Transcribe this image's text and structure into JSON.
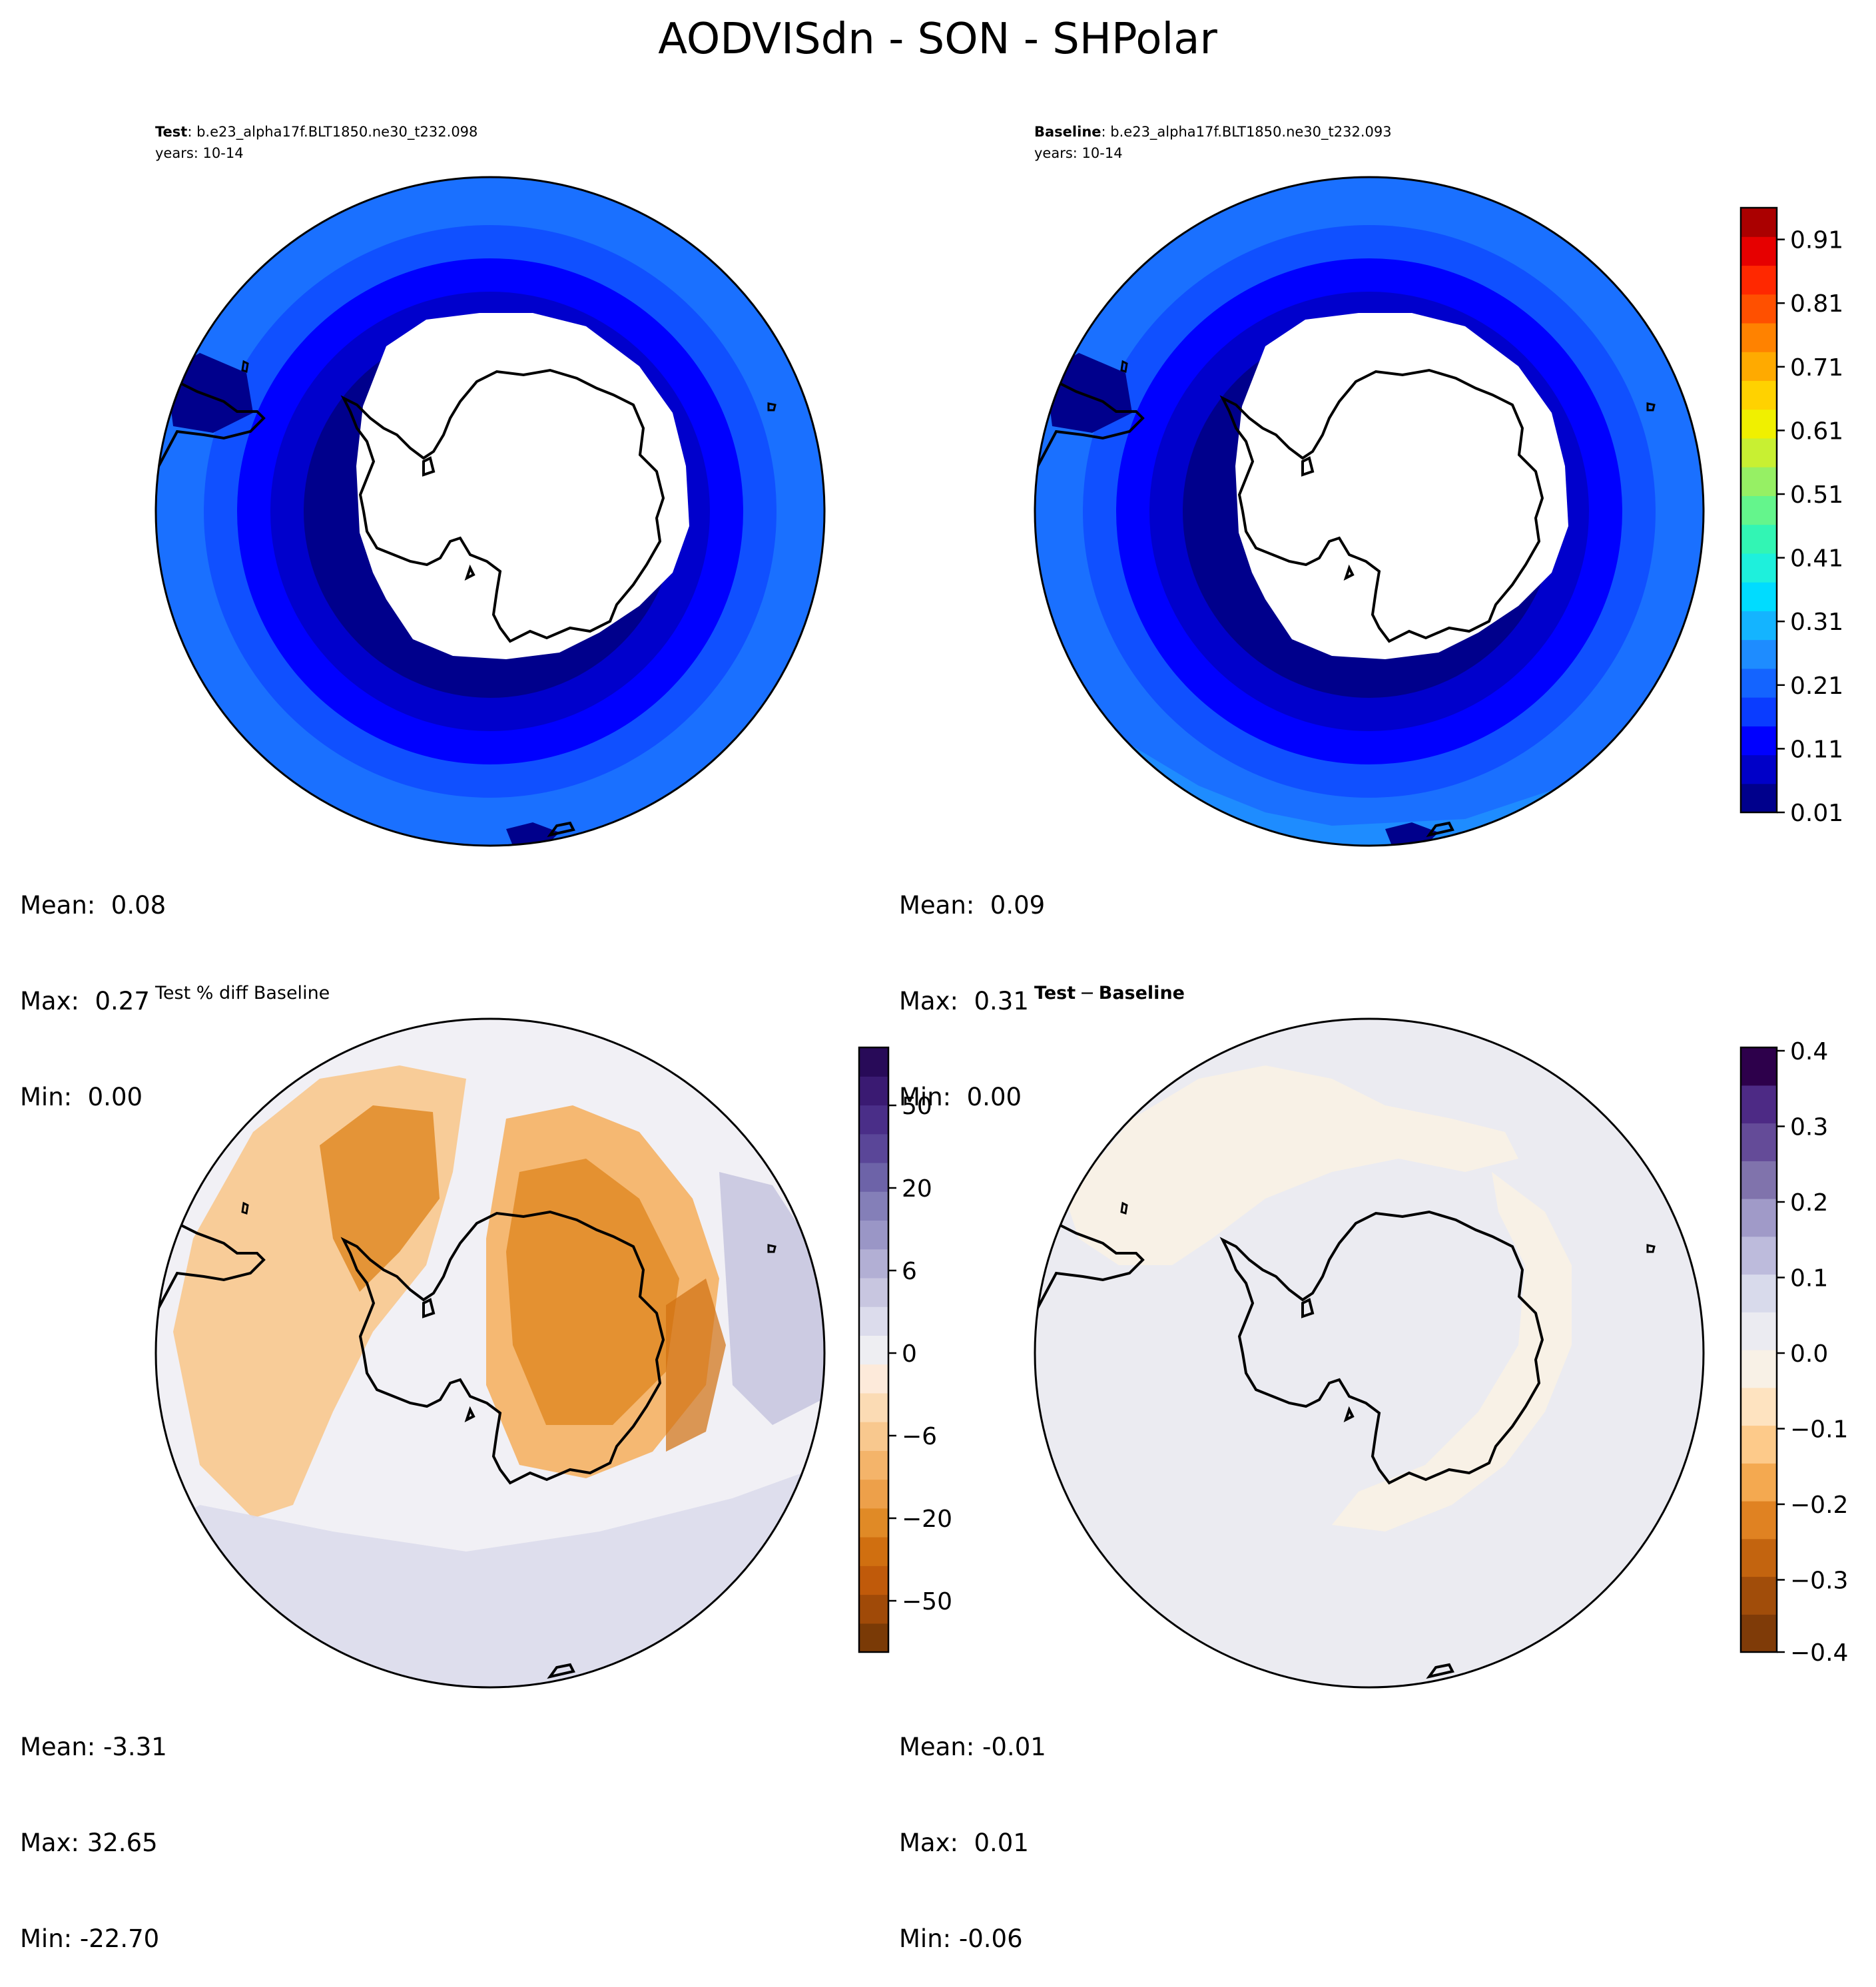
{
  "title": "AODVISdn - SON - SHPolar",
  "panels": {
    "test": {
      "label_bold": "Test",
      "case": "b.e23_alpha17f.BLT1850.ne30_t232.098",
      "years": "years: 10-14",
      "stats": {
        "mean": "Mean:  0.08",
        "max": "Max:  0.27",
        "min": "Min:  0.00"
      }
    },
    "baseline": {
      "label_bold": "Baseline",
      "case": "b.e23_alpha17f.BLT1850.ne30_t232.093",
      "years": "years: 10-14",
      "stats": {
        "mean": "Mean:  0.09",
        "max": "Max:  0.31",
        "min": "Min:  0.00"
      }
    },
    "pctdiff": {
      "title": "Test % diff Baseline",
      "stats": {
        "mean": "Mean: -3.31",
        "max": "Max: 32.65",
        "min": "Min: -22.70"
      }
    },
    "diff": {
      "title_a": "Test",
      "title_op": "−",
      "title_b": "Baseline",
      "stats": {
        "mean": "Mean: -0.01",
        "max": "Max:  0.01",
        "min": "Min: -0.06"
      }
    }
  },
  "colorbars": {
    "main": {
      "ticks": [
        "0.01",
        "0.11",
        "0.21",
        "0.31",
        "0.41",
        "0.51",
        "0.61",
        "0.71",
        "0.81",
        "0.91"
      ],
      "colors": [
        "#00008c",
        "#0000c8",
        "#0000ff",
        "#0a3cff",
        "#1464ff",
        "#1e8cff",
        "#14b4ff",
        "#00dcff",
        "#1ef0dc",
        "#32f5b4",
        "#64f58c",
        "#96f064",
        "#c8f032",
        "#f0f000",
        "#ffd200",
        "#ffaa00",
        "#ff8200",
        "#ff5000",
        "#ff2800",
        "#e60000",
        "#aa0000"
      ]
    },
    "pct": {
      "ticks": [
        "50",
        "20",
        "6",
        "0",
        "−6",
        "−20",
        "−50"
      ],
      "colors": [
        "#7a3a06",
        "#a04a08",
        "#c05a0a",
        "#d06f10",
        "#e08a26",
        "#eda04a",
        "#f4b46a",
        "#f8c88e",
        "#fbdbb4",
        "#fdeada",
        "#eeeef2",
        "#dcdcec",
        "#c8c6e0",
        "#b2afd4",
        "#9a96c6",
        "#847fb8",
        "#6d63a8",
        "#5a4698",
        "#4a2e88",
        "#3a1a72",
        "#280a58"
      ]
    },
    "diff": {
      "ticks": [
        "0.4",
        "0.3",
        "0.2",
        "0.1",
        "0.0",
        "−0.1",
        "−0.2",
        "−0.3",
        "−0.4"
      ],
      "colors": [
        "#7f3b08",
        "#a14d0a",
        "#c3640f",
        "#e08222",
        "#f4a950",
        "#fdca8a",
        "#fee3c0",
        "#f8f1e6",
        "#ebebf1",
        "#d8daeb",
        "#bdbbdc",
        "#a09ac8",
        "#8073ac",
        "#644b98",
        "#4d2a85",
        "#2d004b"
      ]
    }
  },
  "chart_data": [
    {
      "type": "heatmap",
      "title": "Test",
      "subtitle": "b.e23_alpha17f.BLT1850.ne30_t232.098 years: 10-14",
      "projection": "south polar stereographic",
      "mean": 0.08,
      "max": 0.27,
      "min": 0.0,
      "colorbar_range": [
        0.01,
        0.96
      ]
    },
    {
      "type": "heatmap",
      "title": "Baseline",
      "subtitle": "b.e23_alpha17f.BLT1850.ne30_t232.093 years: 10-14",
      "projection": "south polar stereographic",
      "mean": 0.09,
      "max": 0.31,
      "min": 0.0,
      "colorbar_range": [
        0.01,
        0.96
      ]
    },
    {
      "type": "heatmap",
      "title": "Test % diff Baseline",
      "projection": "south polar stereographic",
      "mean": -3.31,
      "max": 32.65,
      "min": -22.7,
      "colorbar_range": [
        -80,
        80
      ]
    },
    {
      "type": "heatmap",
      "title": "Test − Baseline",
      "projection": "south polar stereographic",
      "mean": -0.01,
      "max": 0.01,
      "min": -0.06,
      "colorbar_range": [
        -0.4,
        0.4
      ]
    }
  ]
}
